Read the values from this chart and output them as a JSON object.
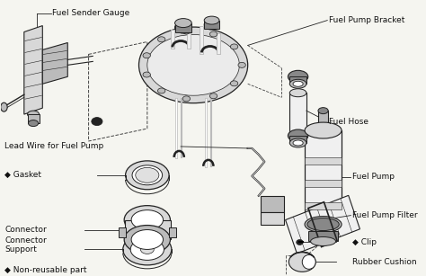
{
  "bg_color": "#f5f5f0",
  "lc": "#222222",
  "dc": "#444444",
  "fc_light": "#d8d8d8",
  "fc_mid": "#bbbbbb",
  "fc_dark": "#888888",
  "labels": {
    "fuel_sender_gauge": "Fuel Sender Gauge",
    "fuel_pump_bracket": "Fuel Pump Bracket",
    "fuel_hose": "Fuel Hose",
    "lead_wire": "Lead Wire for Fuel Pump",
    "gasket": "Gasket",
    "connector": "Connector",
    "connector_support": "Connector\nSupport",
    "fuel_pump": "Fuel Pump",
    "fuel_pump_filter": "Fuel Pump Filter",
    "clip": "Clip",
    "rubber_cushion": "Rubber Cushion",
    "non_reusable": "Non-reusable part"
  }
}
